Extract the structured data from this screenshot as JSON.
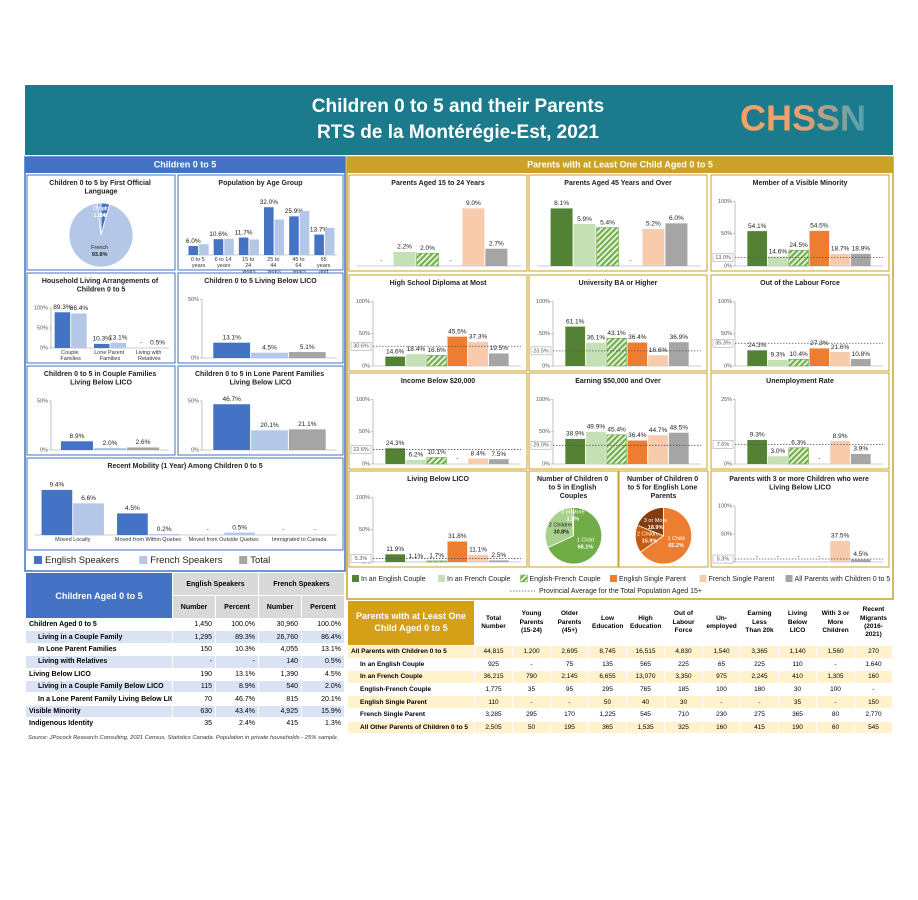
{
  "header": {
    "title_lines": [
      "Children 0 to 5 and their Parents",
      "RTS de la Montérégie-Est, 2021"
    ],
    "logo": "CHSSN"
  },
  "sections": {
    "left": "Children 0 to 5",
    "right": "Parents with at Least One Child Aged 0 to 5"
  },
  "left_legend": [
    {
      "name": "English Speakers",
      "color": "#4472c4"
    },
    {
      "name": "French Speakers",
      "color": "#b4c7e7"
    },
    {
      "name": "Total",
      "color": "#a5a5a5"
    }
  ],
  "right_legend": {
    "items": [
      {
        "name": "In an English Couple",
        "color": "#548235"
      },
      {
        "name": "In an French Couple",
        "color": "#c5e0b4"
      },
      {
        "name": "English-French Couple",
        "color": "#70ad47",
        "hatched": true
      },
      {
        "name": "English Single Parent",
        "color": "#ed7d31"
      },
      {
        "name": "French Single Parent",
        "color": "#f8cbad"
      },
      {
        "name": "All Parents with Children 0 to 5",
        "color": "#a5a5a5"
      }
    ],
    "average": "Provincial Average for the Total Population Aged 15+"
  },
  "chart_data": [
    {
      "type": "pie",
      "title": "Children 0 to 5 by First Official Language",
      "categories": [
        "English",
        "French",
        "Other"
      ],
      "values": [
        4.4,
        93.8,
        1.8
      ],
      "value_labels": [
        "4.4%",
        "93.8%",
        "1.8%"
      ],
      "colors": [
        "#4472c4",
        "#b4c7e7",
        "#8faadc"
      ]
    },
    {
      "type": "bar",
      "title": "Population by Age Group",
      "categories": [
        "0 to 5 years",
        "6 to 14 years",
        "15 to 24 years",
        "25 to 44 years",
        "45 to 64 years",
        "65 years and over"
      ],
      "series": [
        {
          "values": [
            6.0,
            10.6,
            11.7,
            32.0,
            25.9,
            13.7
          ],
          "value_labels": [
            "6.0%",
            "10.6%",
            "11.7%",
            "32.0%",
            "25.9%",
            "13.7%"
          ]
        },
        {
          "values": [
            7.2,
            10.9,
            10.4,
            23.8,
            29.5,
            18.2
          ]
        }
      ]
    },
    {
      "type": "bar",
      "title": "Household Living Arrangements of Children 0 to 5",
      "categories": [
        "Couple Families",
        "Lone Parent Families",
        "Living with Relatives"
      ],
      "series": [
        {
          "values": [
            89.3,
            10.3,
            null
          ],
          "value_labels": [
            "89.3%",
            "10.3%",
            "-"
          ]
        },
        {
          "values": [
            86.4,
            13.1,
            0.5
          ],
          "value_labels": [
            "86.4%",
            "13.1%",
            "0.5%"
          ]
        }
      ],
      "ylim": [
        0,
        100
      ],
      "yticks": [
        {
          "value": 0,
          "label": "0%"
        },
        {
          "value": 50,
          "label": "50%"
        },
        {
          "value": 100,
          "label": "100%"
        }
      ]
    },
    {
      "type": "bar",
      "title": "Children 0 to 5 Living Below LICO",
      "series": [
        {
          "values": [
            13.1
          ],
          "value_labels": [
            "13.1%"
          ]
        },
        {
          "values": [
            4.5
          ],
          "value_labels": [
            "4.5%"
          ]
        },
        {
          "values": [
            5.1
          ],
          "value_labels": [
            "5.1%"
          ]
        }
      ],
      "ylim": [
        0,
        50
      ],
      "yticks": [
        {
          "value": 0,
          "label": "0%"
        },
        {
          "value": 50,
          "label": "50%"
        }
      ]
    },
    {
      "type": "bar",
      "title": "Children 0 to 5 in Couple Families Living Below LICO",
      "series": [
        {
          "values": [
            8.9
          ],
          "value_labels": [
            "8.9%"
          ]
        },
        {
          "values": [
            2.0
          ],
          "value_labels": [
            "2.0%"
          ]
        },
        {
          "values": [
            2.6
          ],
          "value_labels": [
            "2.6%"
          ]
        }
      ],
      "ylim": [
        0,
        50
      ],
      "yticks": [
        {
          "value": 0,
          "label": "0%"
        },
        {
          "value": 50,
          "label": "50%"
        }
      ]
    },
    {
      "type": "bar",
      "title": "Children 0 to 5 in Lone Parent Families Living Below LICO",
      "series": [
        {
          "values": [
            46.7
          ],
          "value_labels": [
            "46.7%"
          ]
        },
        {
          "values": [
            20.1
          ],
          "value_labels": [
            "20.1%"
          ]
        },
        {
          "values": [
            21.1
          ],
          "value_labels": [
            "21.1%"
          ]
        }
      ],
      "ylim": [
        0,
        50
      ],
      "yticks": [
        {
          "value": 0,
          "label": "0%"
        },
        {
          "value": 50,
          "label": "50%"
        }
      ]
    },
    {
      "type": "bar",
      "title": "Recent Mobility (1 Year) Among Children 0 to 5",
      "categories": [
        "Moved Locally",
        "Moved from Within Quebec",
        "Moved from Outside Quebec",
        "Immigrated to Canada"
      ],
      "series": [
        {
          "values": [
            9.4,
            4.5,
            null,
            null
          ],
          "value_labels": [
            "9.4%",
            "4.5%",
            "-",
            "-"
          ]
        },
        {
          "values": [
            6.6,
            0.2,
            0.5,
            null
          ],
          "value_labels": [
            "6.6%",
            "0.2%",
            "0.5%",
            "-"
          ]
        }
      ]
    },
    {
      "type": "bar",
      "title": "Parents Aged 15 to 24 Years",
      "values": [
        null,
        2.2,
        2.0,
        null,
        9.0,
        2.7
      ],
      "value_labels": [
        "-",
        "2.2%",
        "2.0%",
        "-",
        "9.0%",
        "2.7%"
      ]
    },
    {
      "type": "bar",
      "title": "Parents Aged 45 Years and Over",
      "values": [
        8.1,
        5.9,
        5.4,
        null,
        5.2,
        6.0
      ],
      "value_labels": [
        "8.1%",
        "5.9%",
        "5.4%",
        "-",
        "5.2%",
        "6.0%"
      ]
    },
    {
      "type": "bar",
      "title": "Member of a Visible Minority",
      "values": [
        54.1,
        14.6,
        24.5,
        54.5,
        18.7,
        18.9
      ],
      "value_labels": [
        "54.1%",
        "14.6%",
        "24.5%",
        "54.5%",
        "18.7%",
        "18.9%"
      ],
      "ylim": [
        0,
        100
      ],
      "yticks": [
        {
          "value": 0,
          "label": "0%"
        },
        {
          "value": 50,
          "label": "50%"
        },
        {
          "value": 100,
          "label": "100%"
        }
      ],
      "average": {
        "value": 13.0,
        "label": "13.0%"
      }
    },
    {
      "type": "bar",
      "title": "High School Diploma at Most",
      "values": [
        14.6,
        18.4,
        16.6,
        45.5,
        37.3,
        19.5
      ],
      "value_labels": [
        "14.6%",
        "18.4%",
        "16.6%",
        "45.5%",
        "37.3%",
        "19.5%"
      ],
      "ylim": [
        0,
        100
      ],
      "yticks": [
        {
          "value": 0,
          "label": "0%"
        },
        {
          "value": 50,
          "label": "50%"
        },
        {
          "value": 100,
          "label": "100%"
        }
      ],
      "average": {
        "value": 30.6,
        "label": "30.6%"
      }
    },
    {
      "type": "bar",
      "title": "University BA or Higher",
      "values": [
        61.1,
        36.1,
        43.1,
        36.4,
        16.6,
        36.9
      ],
      "value_labels": [
        "61.1%",
        "36.1%",
        "43.1%",
        "36.4%",
        "16.6%",
        "36.9%"
      ],
      "ylim": [
        0,
        100
      ],
      "yticks": [
        {
          "value": 0,
          "label": "0%"
        },
        {
          "value": 50,
          "label": "50%"
        },
        {
          "value": 100,
          "label": "100%"
        }
      ],
      "average": {
        "value": 23.5,
        "label": "23.5%"
      }
    },
    {
      "type": "bar",
      "title": "Out of the Labour Force",
      "values": [
        24.3,
        9.3,
        10.4,
        27.3,
        21.6,
        10.8
      ],
      "value_labels": [
        "24.3%",
        "9.3%",
        "10.4%",
        "27.3%",
        "21.6%",
        "10.8%"
      ],
      "ylim": [
        0,
        100
      ],
      "yticks": [
        {
          "value": 0,
          "label": "0%"
        },
        {
          "value": 50,
          "label": "50%"
        },
        {
          "value": 100,
          "label": "100%"
        }
      ],
      "average": {
        "value": 35.3,
        "label": "35.3%"
      }
    },
    {
      "type": "bar",
      "title": "Income Below $20,000",
      "values": [
        24.3,
        6.2,
        10.1,
        null,
        8.4,
        7.5
      ],
      "value_labels": [
        "24.3%",
        "6.2%",
        "10.1%",
        "-",
        "8.4%",
        "7.5%"
      ],
      "ylim": [
        0,
        100
      ],
      "yticks": [
        {
          "value": 0,
          "label": "0%"
        },
        {
          "value": 50,
          "label": "50%"
        },
        {
          "value": 100,
          "label": "100%"
        }
      ],
      "average": {
        "value": 22.6,
        "label": "22.6%"
      }
    },
    {
      "type": "bar",
      "title": "Earning $50,000 and Over",
      "values": [
        38.9,
        49.9,
        45.4,
        36.4,
        44.7,
        48.5
      ],
      "value_labels": [
        "38.9%",
        "49.9%",
        "45.4%",
        "36.4%",
        "44.7%",
        "48.5%"
      ],
      "ylim": [
        0,
        100
      ],
      "yticks": [
        {
          "value": 0,
          "label": "0%"
        },
        {
          "value": 50,
          "label": "50%"
        },
        {
          "value": 100,
          "label": "100%"
        }
      ],
      "average": {
        "value": 29.0,
        "label": "29.0%"
      }
    },
    {
      "type": "bar",
      "title": "Unemployment Rate",
      "values": [
        9.3,
        3.0,
        6.3,
        null,
        8.9,
        3.9
      ],
      "value_labels": [
        "9.3%",
        "3.0%",
        "6.3%",
        "-",
        "8.9%",
        "3.9%"
      ],
      "ylim": [
        0,
        25
      ],
      "yticks": [
        {
          "value": 0,
          "label": "0%"
        },
        {
          "value": 25,
          "label": "25%"
        }
      ],
      "average": {
        "value": 7.6,
        "label": "7.6%"
      }
    },
    {
      "type": "bar",
      "title": "Living Below LICO",
      "values": [
        11.9,
        1.1,
        1.7,
        31.8,
        11.1,
        2.5
      ],
      "value_labels": [
        "11.9%",
        "1.1%",
        "1.7%",
        "31.8%",
        "11.1%",
        "2.5%"
      ],
      "ylim": [
        0,
        100
      ],
      "yticks": [
        {
          "value": 0,
          "label": "0%"
        },
        {
          "value": 50,
          "label": "50%"
        },
        {
          "value": 100,
          "label": "100%"
        }
      ],
      "average": {
        "value": 5.3,
        "label": "5.3%"
      }
    },
    {
      "type": "pie",
      "title": "Number of Children 0 to 5 in English Couples",
      "categories": [
        "1 Child",
        "2 Children",
        "3 or More"
      ],
      "values": [
        68.1,
        30.8,
        1.1
      ],
      "value_labels": [
        "68.1%",
        "30.8%",
        "1.1%"
      ],
      "colors": [
        "#70ad47",
        "#a9d18e",
        "#548235"
      ]
    },
    {
      "type": "pie",
      "title": "Number of Children 0 to 5 for English Lone Parents",
      "categories": [
        "1 Child",
        "2 Children",
        "3 or More"
      ],
      "values": [
        65.2,
        15.9,
        18.9
      ],
      "value_labels": [
        "65.2%",
        "15.9%",
        "18.9%"
      ],
      "colors": [
        "#ed7d31",
        "#c55a11",
        "#843c0c"
      ]
    },
    {
      "type": "bar",
      "title": "Parents with 3 or more Children who were Living Below LICO",
      "values": [
        null,
        null,
        null,
        null,
        37.5,
        4.5
      ],
      "value_labels": [
        "-",
        "-",
        "-",
        "-",
        "37.5%",
        "4.5%"
      ],
      "ylim": [
        0,
        100
      ],
      "yticks": [
        {
          "value": 0,
          "label": "0%"
        },
        {
          "value": 50,
          "label": "50%"
        },
        {
          "value": 100,
          "label": "100%"
        }
      ],
      "average": {
        "value": 5.3,
        "label": "5.3%"
      }
    }
  ],
  "left_table": {
    "title": "Children Aged 0 to 5",
    "groups": [
      "English Speakers",
      "French Speakers"
    ],
    "columns": [
      "Number",
      "Percent",
      "Number",
      "Percent"
    ],
    "rows": [
      [
        "Children Aged 0 to 5",
        "1,450",
        "100.0%",
        "30,960",
        "100.0%"
      ],
      [
        "Living in a Couple Family",
        "1,295",
        "89.3%",
        "26,760",
        "86.4%"
      ],
      [
        "In Lone Parent Families",
        "150",
        "10.3%",
        "4,055",
        "13.1%"
      ],
      [
        "Living with Relatives",
        "-",
        "-",
        "140",
        "0.5%"
      ],
      [
        "Living Below LICO",
        "190",
        "13.1%",
        "1,390",
        "4.5%"
      ],
      [
        "Living in a Couple Family Below LICO",
        "115",
        "8.9%",
        "540",
        "2.0%"
      ],
      [
        "In a Lone Parent Family Living Below LICO",
        "70",
        "46.7%",
        "815",
        "20.1%"
      ],
      [
        "Visible Minority",
        "630",
        "43.4%",
        "4,925",
        "15.9%"
      ],
      [
        "Indigenous Identity",
        "35",
        "2.4%",
        "415",
        "1.3%"
      ]
    ]
  },
  "right_table": {
    "title": "Parents with at Least One Child Aged 0 to 5",
    "columns": [
      "Total Number",
      "Young Parents (15-24)",
      "Older Parents (45+)",
      "Low Education",
      "High Education",
      "Out of Labour Force",
      "Un-employed",
      "Earning Less Than 20k",
      "Living Below LICO",
      "With 3 or More Children",
      "Recent Migrants (2016-2021)"
    ],
    "rows": [
      [
        "All Parents with Children 0 to 5",
        "44,815",
        "1,200",
        "2,695",
        "8,745",
        "16,515",
        "4,830",
        "1,540",
        "3,365",
        "1,140",
        "1,560",
        "270"
      ],
      [
        "In an English Couple",
        "925",
        "-",
        "75",
        "135",
        "565",
        "225",
        "65",
        "225",
        "110",
        "-",
        "1,640"
      ],
      [
        "In an French Couple",
        "36,215",
        "790",
        "2,145",
        "6,655",
        "13,070",
        "3,350",
        "975",
        "2,245",
        "410",
        "1,305",
        "160"
      ],
      [
        "English-French Couple",
        "1,775",
        "35",
        "95",
        "295",
        "765",
        "185",
        "100",
        "180",
        "30",
        "100",
        "-"
      ],
      [
        "English Single Parent",
        "110",
        "-",
        "-",
        "50",
        "40",
        "30",
        "-",
        "-",
        "35",
        "-",
        "150"
      ],
      [
        "French Single Parent",
        "3,285",
        "295",
        "170",
        "1,225",
        "545",
        "710",
        "230",
        "275",
        "365",
        "80",
        "2,770"
      ],
      [
        "All Other Parents of Children 0 to 5",
        "2,505",
        "50",
        "195",
        "365",
        "1,535",
        "325",
        "160",
        "415",
        "190",
        "60",
        "545"
      ]
    ]
  },
  "source": "Source: JPocock Research Consulting, 2021 Census, Statistics Canada. Population in private households - 25% sample."
}
